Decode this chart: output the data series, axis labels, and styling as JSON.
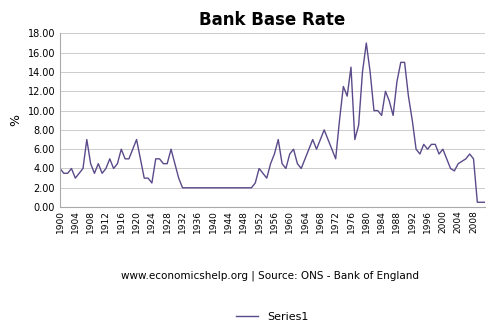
{
  "title": "Bank Base Rate",
  "ylabel": "%",
  "xlabel": "www.economicshelp.org | Source: ONS - Bank of England",
  "legend_label": "Series1",
  "line_color": "#5b4a8a",
  "background_color": "#ffffff",
  "grid_color": "#cccccc",
  "ylim": [
    0,
    18
  ],
  "yticks": [
    0.0,
    2.0,
    4.0,
    6.0,
    8.0,
    10.0,
    12.0,
    14.0,
    16.0,
    18.0
  ],
  "xticks": [
    1900,
    1904,
    1908,
    1912,
    1916,
    1920,
    1924,
    1928,
    1932,
    1936,
    1940,
    1944,
    1948,
    1952,
    1956,
    1960,
    1964,
    1968,
    1972,
    1976,
    1980,
    1984,
    1988,
    1992,
    1996,
    2000,
    2004,
    2008
  ],
  "years": [
    1900,
    1901,
    1902,
    1903,
    1904,
    1905,
    1906,
    1907,
    1908,
    1909,
    1910,
    1911,
    1912,
    1913,
    1914,
    1915,
    1916,
    1917,
    1918,
    1919,
    1920,
    1921,
    1922,
    1923,
    1924,
    1925,
    1926,
    1927,
    1928,
    1929,
    1930,
    1931,
    1932,
    1933,
    1934,
    1935,
    1936,
    1937,
    1938,
    1939,
    1940,
    1941,
    1942,
    1943,
    1944,
    1945,
    1946,
    1947,
    1948,
    1949,
    1950,
    1951,
    1952,
    1953,
    1954,
    1955,
    1956,
    1957,
    1958,
    1959,
    1960,
    1961,
    1962,
    1963,
    1964,
    1965,
    1966,
    1967,
    1968,
    1969,
    1970,
    1971,
    1972,
    1973,
    1974,
    1975,
    1976,
    1977,
    1978,
    1979,
    1980,
    1981,
    1982,
    1983,
    1984,
    1985,
    1986,
    1987,
    1988,
    1989,
    1990,
    1991,
    1992,
    1993,
    1994,
    1995,
    1996,
    1997,
    1998,
    1999,
    2000,
    2001,
    2002,
    2003,
    2004,
    2005,
    2006,
    2007,
    2008,
    2009,
    2010,
    2011
  ],
  "rates": [
    4.0,
    3.5,
    3.5,
    4.0,
    3.0,
    3.5,
    4.0,
    7.0,
    4.5,
    3.5,
    4.5,
    3.5,
    4.0,
    5.0,
    4.0,
    4.5,
    6.0,
    5.0,
    5.0,
    6.0,
    7.0,
    5.0,
    3.0,
    3.0,
    2.5,
    5.0,
    5.0,
    4.5,
    4.5,
    6.0,
    4.5,
    3.0,
    2.0,
    2.0,
    2.0,
    2.0,
    2.0,
    2.0,
    2.0,
    2.0,
    2.0,
    2.0,
    2.0,
    2.0,
    2.0,
    2.0,
    2.0,
    2.0,
    2.0,
    2.0,
    2.0,
    2.5,
    4.0,
    3.5,
    3.0,
    4.5,
    5.5,
    7.0,
    4.5,
    4.0,
    5.5,
    6.0,
    4.5,
    4.0,
    5.0,
    6.0,
    7.0,
    6.0,
    7.0,
    8.0,
    7.0,
    6.0,
    5.0,
    9.0,
    12.5,
    11.5,
    14.5,
    7.0,
    8.5,
    14.0,
    17.0,
    14.0,
    10.0,
    10.0,
    9.5,
    12.0,
    11.0,
    9.5,
    13.0,
    15.0,
    15.0,
    11.5,
    9.0,
    6.0,
    5.5,
    6.5,
    6.0,
    6.5,
    6.5,
    5.5,
    6.0,
    5.0,
    4.0,
    3.75,
    4.5,
    4.75,
    5.0,
    5.5,
    5.0,
    0.5,
    0.5,
    0.5
  ]
}
